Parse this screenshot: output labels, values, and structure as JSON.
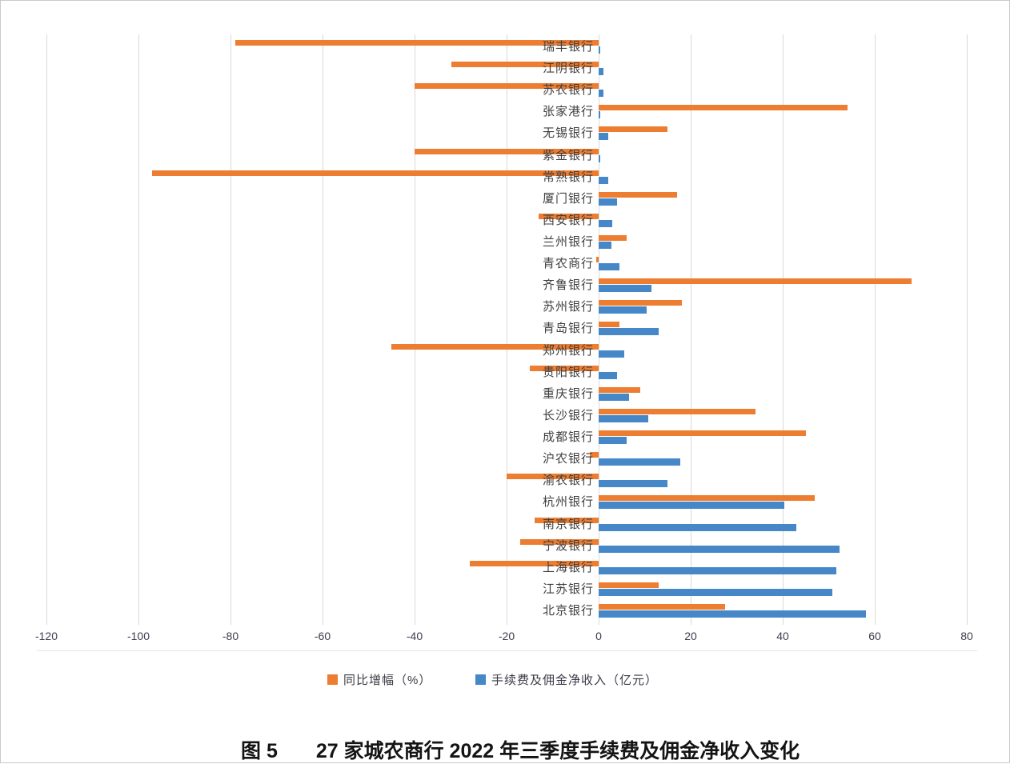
{
  "chart_data": {
    "type": "bar",
    "orientation": "horizontal",
    "caption_prefix": "图 5",
    "caption_title": "27 家城农商行 2022 年三季度手续费及佣金净收入变化",
    "xlim": [
      -120,
      80
    ],
    "x_ticks": [
      -120,
      -100,
      -80,
      -60,
      -40,
      -20,
      0,
      20,
      40,
      60,
      80
    ],
    "grid": true,
    "legend_position": "bottom",
    "categories": [
      "瑞丰银行",
      "江阴银行",
      "苏农银行",
      "张家港行",
      "无锡银行",
      "紫金银行",
      "常熟银行",
      "厦门银行",
      "西安银行",
      "兰州银行",
      "青农商行",
      "齐鲁银行",
      "苏州银行",
      "青岛银行",
      "郑州银行",
      "贵阳银行",
      "重庆银行",
      "长沙银行",
      "成都银行",
      "沪农银行",
      "渝农银行",
      "杭州银行",
      "南京银行",
      "宁波银行",
      "上海银行",
      "江苏银行",
      "北京银行"
    ],
    "series": [
      {
        "name": "同比增幅（%）",
        "color": "#ED7D31",
        "values": [
          -79,
          -32,
          -40,
          54,
          15,
          -40,
          -97,
          17,
          -13,
          6,
          -0.5,
          68,
          18,
          4.5,
          -45,
          -15,
          9,
          34,
          45,
          -2,
          -20,
          47,
          -14,
          -17,
          -28,
          13,
          27.5
        ]
      },
      {
        "name": "手续费及佣金净收入（亿元）",
        "color": "#4587C7",
        "values": [
          0.4,
          1,
          1,
          0.3,
          2,
          0.4,
          2,
          4,
          3,
          2.7,
          4.6,
          11.4,
          10.4,
          13,
          5.6,
          4,
          6.6,
          10.8,
          6,
          17.8,
          15,
          40.4,
          43,
          52.4,
          51.6,
          50.8,
          58
        ]
      }
    ],
    "legend": [
      {
        "label": "同比增幅（%）",
        "color": "#ED7D31"
      },
      {
        "label": "手续费及佣金净收入（亿元）",
        "color": "#4587C7"
      }
    ]
  },
  "colors": {
    "growth_series": "#ED7D31",
    "income_series": "#4587C7",
    "gridline": "#d9d9d9",
    "category_text": "#3f3f3f",
    "tick_text": "#3d3d4d",
    "caption_text": "#141414"
  }
}
